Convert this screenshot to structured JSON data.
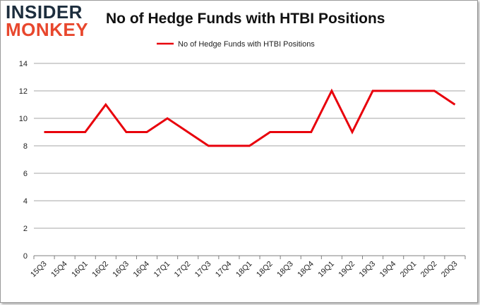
{
  "logo": {
    "line1": "INSIDER",
    "line2": "MONKEY"
  },
  "chart_data": {
    "type": "line",
    "title": "No of Hedge Funds with HTBI Positions",
    "categories": [
      "15Q3",
      "15Q4",
      "16Q1",
      "16Q2",
      "16Q3",
      "16Q4",
      "17Q1",
      "17Q2",
      "17Q3",
      "17Q4",
      "18Q1",
      "18Q2",
      "18Q3",
      "18Q4",
      "19Q1",
      "19Q2",
      "19Q3",
      "19Q4",
      "20Q1",
      "20Q2",
      "20Q3"
    ],
    "series": [
      {
        "name": "No of Hedge Funds with HTBI  Positions",
        "values": [
          9,
          9,
          9,
          11,
          9,
          9,
          10,
          9,
          8,
          8,
          8,
          9,
          9,
          9,
          12,
          9,
          12,
          12,
          12,
          12,
          11
        ],
        "color": "#e8000b"
      }
    ],
    "xlabel": "",
    "ylabel": "",
    "ylim": [
      0,
      14
    ],
    "yticks": [
      0,
      2,
      4,
      6,
      8,
      10,
      12,
      14
    ],
    "grid": "horizontal",
    "legend": "top-center"
  }
}
